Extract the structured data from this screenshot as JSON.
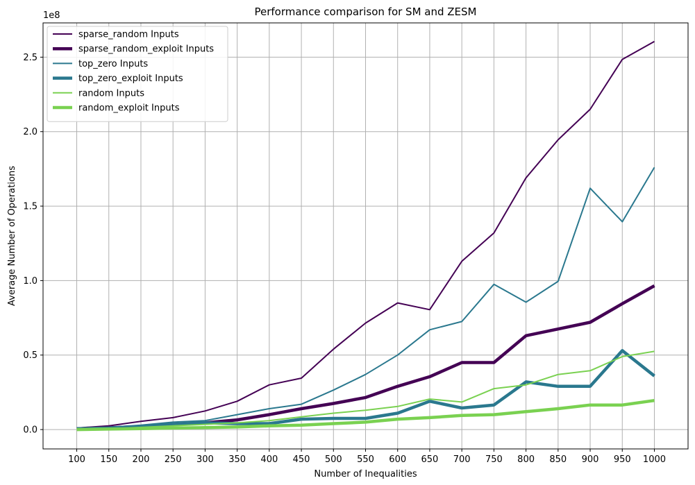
{
  "chart_data": {
    "type": "line",
    "title": "Performance comparison for SM and ZESM",
    "xlabel": "Number of Inequalities",
    "ylabel": "Average Number of Operations",
    "y_offset_text": "1e8",
    "x": [
      100,
      150,
      200,
      250,
      300,
      350,
      400,
      450,
      500,
      550,
      600,
      650,
      700,
      750,
      800,
      850,
      900,
      950,
      1000
    ],
    "xlim": [
      47.5,
      1052.5
    ],
    "ylim": [
      -0.13,
      2.73
    ],
    "y_ticks": [
      0.0,
      0.5,
      1.0,
      1.5,
      2.0,
      2.5
    ],
    "y_tick_labels": [
      "0.0",
      "0.5",
      "1.0",
      "1.5",
      "2.0",
      "2.5"
    ],
    "grid": true,
    "legend_position": "top-left",
    "series": [
      {
        "name": "sparse_random Inputs",
        "color": "#440154",
        "weight": "thin",
        "values": [
          0.01,
          0.025,
          0.055,
          0.08,
          0.125,
          0.19,
          0.3,
          0.345,
          0.54,
          0.715,
          0.85,
          0.805,
          1.13,
          1.32,
          1.69,
          1.945,
          2.15,
          2.485,
          2.605
        ]
      },
      {
        "name": "sparse_random_exploit Inputs",
        "color": "#440154",
        "weight": "thick",
        "values": [
          0.005,
          0.012,
          0.02,
          0.035,
          0.045,
          0.065,
          0.1,
          0.14,
          0.175,
          0.215,
          0.29,
          0.355,
          0.45,
          0.45,
          0.63,
          0.675,
          0.72,
          0.845,
          0.965
        ]
      },
      {
        "name": "top_zero Inputs",
        "color": "#2a788e",
        "weight": "thin",
        "values": [
          0.01,
          0.015,
          0.03,
          0.05,
          0.06,
          0.1,
          0.14,
          0.17,
          0.265,
          0.37,
          0.5,
          0.67,
          0.725,
          0.975,
          0.855,
          0.995,
          1.62,
          1.395,
          1.76
        ]
      },
      {
        "name": "top_zero_exploit Inputs",
        "color": "#2a788e",
        "weight": "thick",
        "values": [
          0.005,
          0.01,
          0.02,
          0.035,
          0.045,
          0.04,
          0.04,
          0.07,
          0.075,
          0.075,
          0.11,
          0.19,
          0.145,
          0.165,
          0.32,
          0.29,
          0.29,
          0.53,
          0.36
        ]
      },
      {
        "name": "random Inputs",
        "color": "#7ad151",
        "weight": "thin",
        "values": [
          0.0,
          0.005,
          0.015,
          0.025,
          0.035,
          0.045,
          0.06,
          0.085,
          0.11,
          0.13,
          0.155,
          0.205,
          0.185,
          0.275,
          0.3,
          0.37,
          0.395,
          0.49,
          0.525
        ]
      },
      {
        "name": "random_exploit Inputs",
        "color": "#7ad151",
        "weight": "thick",
        "values": [
          0.0,
          0.003,
          0.006,
          0.01,
          0.013,
          0.017,
          0.025,
          0.03,
          0.04,
          0.05,
          0.07,
          0.08,
          0.095,
          0.1,
          0.12,
          0.14,
          0.165,
          0.165,
          0.195
        ]
      }
    ]
  }
}
